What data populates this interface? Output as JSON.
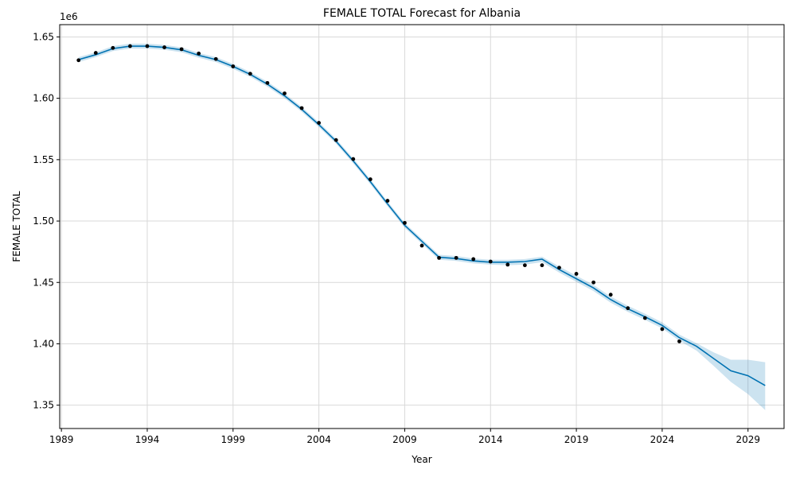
{
  "chart_data": {
    "type": "line",
    "title": "FEMALE TOTAL Forecast for Albania",
    "xlabel": "Year",
    "ylabel": "FEMALE TOTAL",
    "y_offset_label": "1e6",
    "grid": true,
    "xlim": [
      1988.9,
      2031.1
    ],
    "ylim": [
      1.331,
      1.66
    ],
    "x_ticks": [
      1989,
      1994,
      1999,
      2004,
      2009,
      2014,
      2019,
      2024,
      2029
    ],
    "x_tick_labels": [
      "1989",
      "1994",
      "1999",
      "2004",
      "2009",
      "2014",
      "2019",
      "2024",
      "2029"
    ],
    "y_ticks": [
      1.35,
      1.4,
      1.45,
      1.5,
      1.55,
      1.6,
      1.65
    ],
    "y_tick_labels": [
      "1.35",
      "1.40",
      "1.45",
      "1.50",
      "1.55",
      "1.60",
      "1.65"
    ],
    "colors": {
      "forecast": "#0072b2",
      "interval": "#0072b2",
      "observed": "#000000"
    },
    "series": [
      {
        "type": "scatter",
        "x": [
          1990,
          1991,
          1992,
          1993,
          1994,
          1995,
          1996,
          1997,
          1998,
          1999,
          2000,
          2001,
          2002,
          2003,
          2004,
          2005,
          2006,
          2007,
          2008,
          2009,
          2010,
          2011,
          2012,
          2013,
          2014,
          2015,
          2016,
          2017,
          2018,
          2019,
          2020,
          2021,
          2022,
          2023,
          2024,
          2025
        ],
        "values": [
          1.631,
          1.637,
          1.641,
          1.6425,
          1.6425,
          1.6415,
          1.64,
          1.6365,
          1.632,
          1.626,
          1.62,
          1.6125,
          1.604,
          1.592,
          1.58,
          1.566,
          1.5505,
          1.534,
          1.5165,
          1.4985,
          1.48,
          1.47,
          1.47,
          1.469,
          1.467,
          1.4645,
          1.464,
          1.464,
          1.462,
          1.457,
          1.45,
          1.44,
          1.429,
          1.421,
          1.412,
          1.402
        ]
      },
      {
        "type": "line",
        "x": [
          1990,
          1991,
          1992,
          1993,
          1994,
          1995,
          1996,
          1997,
          1998,
          1999,
          2000,
          2001,
          2002,
          2003,
          2004,
          2005,
          2006,
          2007,
          2008,
          2009,
          2010,
          2011,
          2012,
          2013,
          2014,
          2015,
          2016,
          2017,
          2018,
          2019,
          2020,
          2021,
          2022,
          2023,
          2024,
          2025,
          2026,
          2027,
          2028,
          2029,
          2030
        ],
        "values": [
          1.6315,
          1.6355,
          1.6405,
          1.6425,
          1.6425,
          1.6415,
          1.6395,
          1.635,
          1.6315,
          1.626,
          1.6195,
          1.6115,
          1.602,
          1.591,
          1.5785,
          1.565,
          1.549,
          1.532,
          1.514,
          1.4965,
          1.4835,
          1.4705,
          1.4695,
          1.4675,
          1.4665,
          1.4665,
          1.467,
          1.469,
          1.4605,
          1.453,
          1.4455,
          1.436,
          1.4285,
          1.422,
          1.415,
          1.405,
          1.398,
          1.388,
          1.378,
          1.374,
          1.366
        ],
        "lower": [
          1.6295,
          1.6335,
          1.6385,
          1.6405,
          1.6405,
          1.6395,
          1.6375,
          1.633,
          1.6295,
          1.624,
          1.6175,
          1.6095,
          1.6,
          1.589,
          1.5765,
          1.563,
          1.547,
          1.53,
          1.512,
          1.4945,
          1.4815,
          1.4685,
          1.4675,
          1.4655,
          1.4645,
          1.464,
          1.4645,
          1.4665,
          1.458,
          1.4505,
          1.443,
          1.4335,
          1.426,
          1.4195,
          1.4125,
          1.4025,
          1.3945,
          1.382,
          1.369,
          1.359,
          1.346
        ],
        "upper": [
          1.6335,
          1.6375,
          1.6425,
          1.6445,
          1.6445,
          1.6435,
          1.6415,
          1.637,
          1.6335,
          1.628,
          1.6215,
          1.6135,
          1.604,
          1.593,
          1.5805,
          1.567,
          1.551,
          1.534,
          1.516,
          1.4985,
          1.4855,
          1.4725,
          1.4715,
          1.4695,
          1.4685,
          1.4685,
          1.469,
          1.471,
          1.463,
          1.4555,
          1.448,
          1.4385,
          1.431,
          1.4245,
          1.4175,
          1.4075,
          1.4005,
          1.393,
          1.387,
          1.387,
          1.385
        ]
      }
    ]
  }
}
